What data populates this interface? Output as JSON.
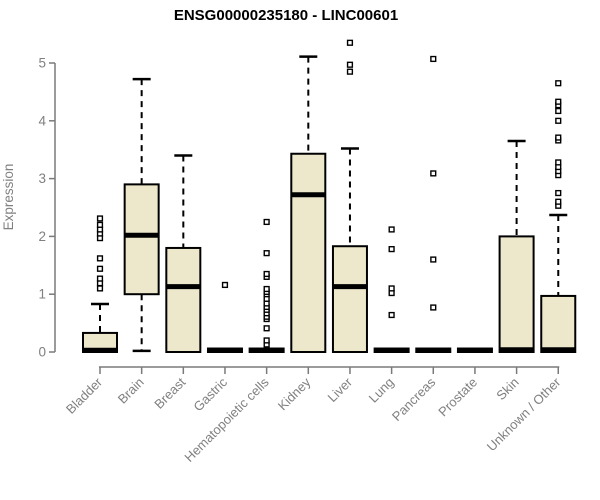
{
  "colors": {
    "box_fill": "#EDE8CC",
    "box_stroke": "#000000",
    "median": "#000000",
    "axis": "#7a7a7a",
    "tick_label": "#808080",
    "title": "#000000",
    "background": "#ffffff"
  },
  "chart_data": {
    "type": "boxplot",
    "title": "ENSG00000235180 - LINC00601",
    "xlabel": "",
    "ylabel": "Expression",
    "ylim": [
      0,
      5.5
    ],
    "yticks": [
      0,
      1,
      2,
      3,
      4,
      5
    ],
    "grid": false,
    "legend": "none",
    "categories": [
      "Bladder",
      "Brain",
      "Breast",
      "Gastric",
      "Hematopoietic cells",
      "Kidney",
      "Liver",
      "Lung",
      "Pancreas",
      "Prostate",
      "Skin",
      "Unknown / Other"
    ],
    "series": [
      {
        "category": "Bladder",
        "min": 0,
        "q1": 0,
        "median": 0.03,
        "q3": 0.33,
        "max": 0.83,
        "outliers": [
          1.1,
          1.19,
          1.27,
          1.44,
          1.62,
          1.97,
          2.05,
          2.12,
          2.2,
          2.31
        ]
      },
      {
        "category": "Brain",
        "min": 0.02,
        "q1": 1.0,
        "median": 2.02,
        "q3": 2.9,
        "max": 4.72,
        "outliers": []
      },
      {
        "category": "Breast",
        "min": 0,
        "q1": 0,
        "median": 1.13,
        "q3": 1.8,
        "max": 3.4,
        "outliers": []
      },
      {
        "category": "Gastric",
        "min": 0,
        "q1": 0,
        "median": 0.03,
        "q3": 0.06,
        "max": 0.06,
        "outliers": [
          1.16
        ]
      },
      {
        "category": "Hematopoietic cells",
        "min": 0,
        "q1": 0,
        "median": 0.03,
        "q3": 0.06,
        "max": 0.06,
        "outliers": [
          0.13,
          0.2,
          0.41,
          0.57,
          0.61,
          0.67,
          0.73,
          0.78,
          0.84,
          0.92,
          1.0,
          1.04,
          1.09,
          1.3,
          1.35,
          1.71,
          2.25
        ]
      },
      {
        "category": "Kidney",
        "min": 0,
        "q1": 0,
        "median": 2.72,
        "q3": 3.43,
        "max": 5.11,
        "outliers": []
      },
      {
        "category": "Liver",
        "min": 0,
        "q1": 0,
        "median": 1.13,
        "q3": 1.83,
        "max": 3.52,
        "outliers": [
          4.85,
          4.97,
          5.35
        ]
      },
      {
        "category": "Lung",
        "min": 0,
        "q1": 0,
        "median": 0.03,
        "q3": 0.06,
        "max": 0.06,
        "outliers": [
          0.64,
          1.02,
          1.1,
          1.78,
          2.12
        ]
      },
      {
        "category": "Pancreas",
        "min": 0,
        "q1": 0,
        "median": 0.03,
        "q3": 0.06,
        "max": 0.06,
        "outliers": [
          0.77,
          1.6,
          3.09,
          5.07
        ]
      },
      {
        "category": "Prostate",
        "min": 0,
        "q1": 0,
        "median": 0.03,
        "q3": 0.06,
        "max": 0.06,
        "outliers": []
      },
      {
        "category": "Skin",
        "min": 0,
        "q1": 0,
        "median": 0.04,
        "q3": 2.0,
        "max": 3.65,
        "outliers": []
      },
      {
        "category": "Unknown / Other",
        "min": 0,
        "q1": 0,
        "median": 0.04,
        "q3": 0.97,
        "max": 2.37,
        "outliers": [
          2.53,
          2.6,
          2.75,
          3.06,
          3.13,
          3.2,
          3.28,
          3.66,
          3.71,
          4.0,
          4.17,
          4.27,
          4.33,
          4.65
        ]
      }
    ]
  }
}
